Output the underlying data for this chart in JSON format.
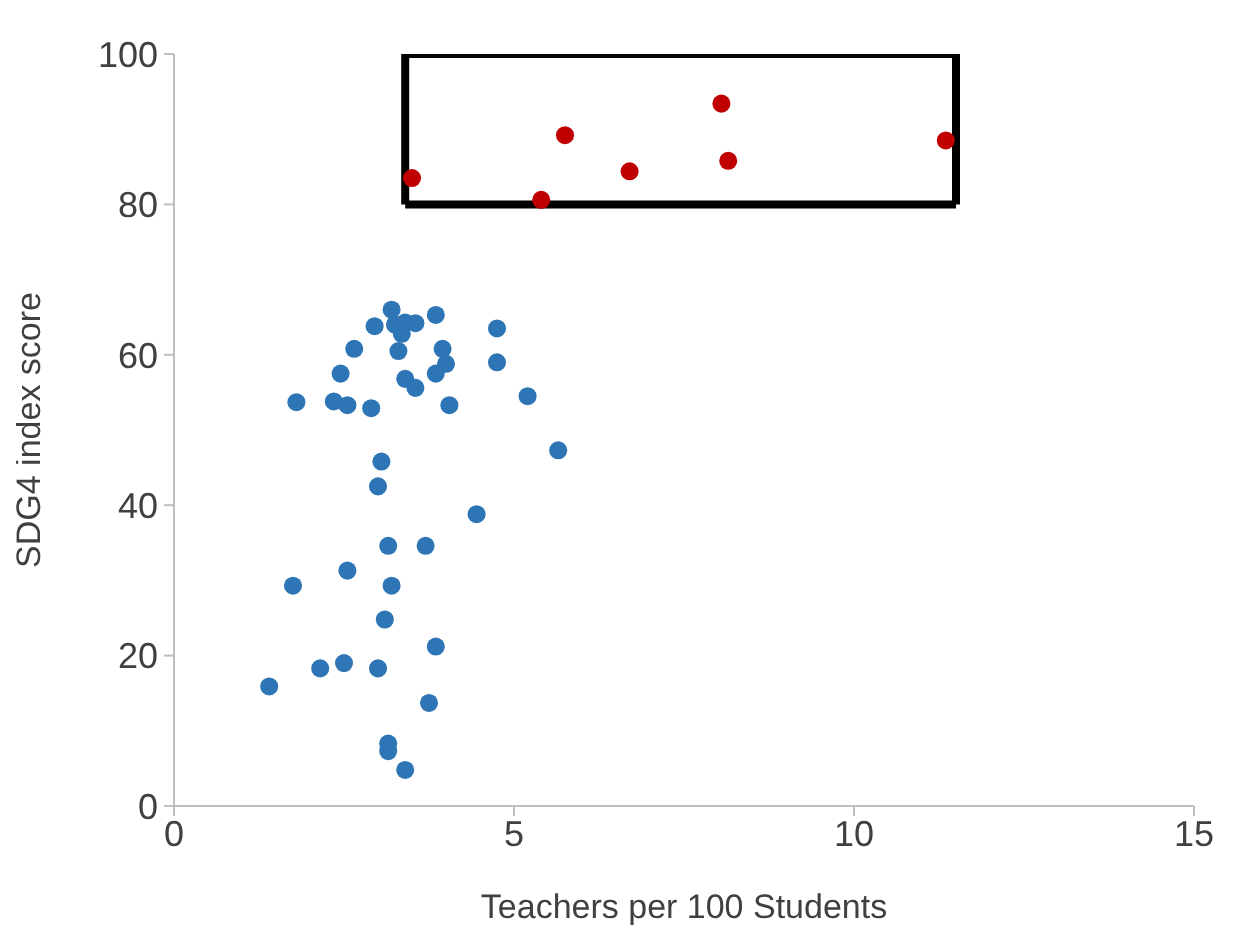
{
  "chart_data": {
    "type": "scatter",
    "xlabel": "Teachers per 100 Students",
    "ylabel": "SDG4 index score",
    "xlim": [
      0,
      15
    ],
    "xticks": [
      0,
      5,
      10,
      15
    ],
    "ylim": [
      0,
      100
    ],
    "yticks": [
      0,
      20,
      40,
      60,
      80,
      100
    ],
    "grid": false,
    "marker": "circle",
    "series": [
      {
        "type": "line",
        "color": "#000000",
        "marker": "none",
        "x": [
          3.4,
          3.4,
          11.5,
          11.5
        ],
        "values": [
          80,
          100,
          100,
          80
        ]
      },
      {
        "type": "line",
        "color": "#000000",
        "marker": "none",
        "x": [
          3.4,
          11.5
        ],
        "values": [
          80,
          80
        ]
      },
      {
        "color": "#2e75b6",
        "x": [
          1.8,
          2.35,
          2.45,
          2.55,
          2.65,
          2.9,
          2.95,
          3.2,
          3.25,
          3.35,
          3.4,
          3.3,
          3.4,
          3.55,
          3.55,
          3.85,
          3.85,
          3.95,
          4.0,
          4.05,
          4.75,
          4.75,
          5.2,
          5.65,
          3.05,
          3.0,
          4.45,
          3.15,
          3.7,
          2.55,
          1.75,
          3.2,
          3.1,
          3.85,
          2.5,
          2.15,
          3.0,
          1.4,
          3.75,
          3.15,
          3.15,
          3.4
        ],
        "values": [
          53.7,
          53.8,
          57.5,
          53.3,
          60.8,
          52.9,
          63.8,
          66,
          64,
          62.8,
          64.3,
          60.5,
          56.8,
          55.6,
          64.2,
          65.3,
          57.5,
          60.8,
          58.8,
          53.3,
          63.5,
          59,
          54.5,
          47.3,
          45.8,
          42.5,
          38.8,
          34.6,
          34.6,
          31.3,
          29.3,
          29.3,
          24.8,
          21.2,
          19,
          18.3,
          18.3,
          15.9,
          13.7,
          8.3,
          7.3,
          4.8
        ]
      },
      {
        "color": "#c00000",
        "x": [
          3.5,
          5.4,
          5.75,
          6.7,
          8.05,
          8.15,
          11.35
        ],
        "values": [
          83.5,
          80.6,
          89.2,
          84.4,
          93.4,
          85.8,
          88.5
        ]
      }
    ]
  }
}
